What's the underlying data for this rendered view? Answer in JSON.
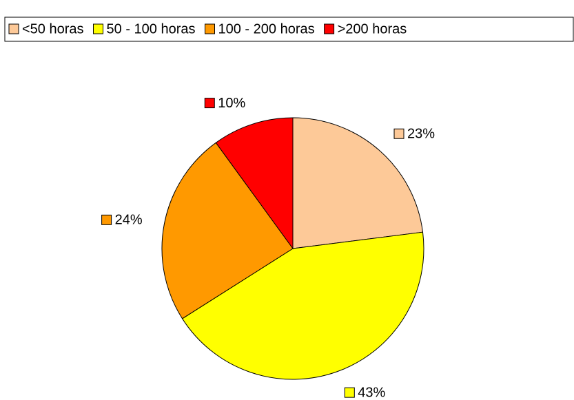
{
  "chart_data": {
    "type": "pie",
    "categories": [
      "<50 horas",
      "50 - 100 horas",
      "100 - 200 horas",
      ">200 horas"
    ],
    "values": [
      23,
      43,
      24,
      10
    ],
    "value_labels": [
      "23%",
      "43%",
      "24%",
      "10%"
    ],
    "colors": [
      "#fdc998",
      "#ffff00",
      "#ff9900",
      "#ff0000"
    ],
    "legend": "top"
  }
}
